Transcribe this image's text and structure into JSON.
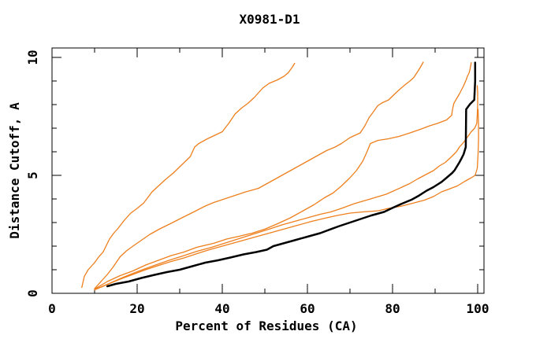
{
  "title": "X0981-D1",
  "colors": {
    "background": "#ffffff",
    "frame": "#000000",
    "target_curve": "#000000",
    "comparison_curve": "#ee7f1d"
  },
  "chart_data": {
    "type": "line",
    "title": "X0981-D1",
    "xlabel": "Percent of Residues (CA)",
    "ylabel": "Distance Cutoff, A",
    "xlim": [
      0,
      101.5
    ],
    "ylim": [
      0,
      10.4
    ],
    "grid": false,
    "legend": "none",
    "x_ticks": [
      {
        "v": 0,
        "label": "0"
      },
      {
        "v": 20,
        "label": "20"
      },
      {
        "v": 40,
        "label": "40"
      },
      {
        "v": 60,
        "label": "60"
      },
      {
        "v": 80,
        "label": "80"
      },
      {
        "v": 100,
        "label": "100"
      }
    ],
    "x_minor_ticks": [
      10,
      30,
      50,
      70,
      90
    ],
    "y_ticks": [
      {
        "v": 0,
        "label": "0"
      },
      {
        "v": 5,
        "label": "5"
      },
      {
        "v": 10,
        "label": "10"
      }
    ],
    "y_minor_ticks": [
      1,
      2,
      3,
      4,
      6,
      7,
      8,
      9
    ],
    "series": [
      {
        "name": "orange-curve-1",
        "color": "#ee7f1d",
        "width": 1.3,
        "points": [
          [
            7,
            0.25
          ],
          [
            7.6,
            0.72
          ],
          [
            8.5,
            1.0
          ],
          [
            10,
            1.3
          ],
          [
            11,
            1.55
          ],
          [
            12,
            1.75
          ],
          [
            13.5,
            2.3
          ],
          [
            14.5,
            2.55
          ],
          [
            15.5,
            2.75
          ],
          [
            17,
            3.1
          ],
          [
            18.5,
            3.4
          ],
          [
            20,
            3.6
          ],
          [
            21.5,
            3.82
          ],
          [
            23.5,
            4.3
          ],
          [
            25,
            4.55
          ],
          [
            26.5,
            4.8
          ],
          [
            28.5,
            5.1
          ],
          [
            30.5,
            5.45
          ],
          [
            32.5,
            5.8
          ],
          [
            33.5,
            6.2
          ],
          [
            34.5,
            6.35
          ],
          [
            36.5,
            6.55
          ],
          [
            38.5,
            6.72
          ],
          [
            40,
            6.85
          ],
          [
            41.5,
            7.2
          ],
          [
            43,
            7.6
          ],
          [
            44.5,
            7.85
          ],
          [
            46,
            8.05
          ],
          [
            47.5,
            8.3
          ],
          [
            49.5,
            8.7
          ],
          [
            51,
            8.9
          ],
          [
            53,
            9.05
          ],
          [
            54.5,
            9.2
          ],
          [
            55.5,
            9.35
          ],
          [
            56.5,
            9.6
          ],
          [
            57,
            9.75
          ]
        ]
      },
      {
        "name": "orange-curve-2",
        "color": "#ee7f1d",
        "width": 1.3,
        "points": [
          [
            10,
            0.2
          ],
          [
            11.5,
            0.5
          ],
          [
            13,
            0.8
          ],
          [
            14.3,
            1.1
          ],
          [
            16,
            1.55
          ],
          [
            17.5,
            1.8
          ],
          [
            19,
            2.0
          ],
          [
            21,
            2.25
          ],
          [
            23,
            2.5
          ],
          [
            25.5,
            2.75
          ],
          [
            27.8,
            2.95
          ],
          [
            30.5,
            3.2
          ],
          [
            33.3,
            3.45
          ],
          [
            36,
            3.7
          ],
          [
            38,
            3.85
          ],
          [
            40.5,
            4.0
          ],
          [
            43,
            4.15
          ],
          [
            45.5,
            4.3
          ],
          [
            48.5,
            4.45
          ],
          [
            50.5,
            4.65
          ],
          [
            52.5,
            4.85
          ],
          [
            55,
            5.1
          ],
          [
            57,
            5.3
          ],
          [
            58.5,
            5.45
          ],
          [
            60.5,
            5.65
          ],
          [
            62,
            5.8
          ],
          [
            64.5,
            6.05
          ],
          [
            66.5,
            6.2
          ],
          [
            68,
            6.35
          ],
          [
            70,
            6.6
          ],
          [
            72.4,
            6.8
          ],
          [
            73.5,
            7.1
          ],
          [
            74.5,
            7.45
          ],
          [
            75.4,
            7.67
          ],
          [
            76.5,
            7.95
          ],
          [
            77.5,
            8.07
          ],
          [
            79.1,
            8.2
          ],
          [
            80.5,
            8.45
          ],
          [
            81.7,
            8.65
          ],
          [
            83,
            8.85
          ],
          [
            84.1,
            9.0
          ],
          [
            85,
            9.15
          ],
          [
            85.9,
            9.4
          ],
          [
            86.6,
            9.6
          ],
          [
            87.2,
            9.8
          ]
        ]
      },
      {
        "name": "orange-curve-3",
        "color": "#ee7f1d",
        "width": 1.3,
        "points": [
          [
            10,
            0.18
          ],
          [
            13,
            0.5
          ],
          [
            16,
            0.75
          ],
          [
            19,
            0.95
          ],
          [
            22,
            1.2
          ],
          [
            25,
            1.4
          ],
          [
            28,
            1.6
          ],
          [
            31,
            1.75
          ],
          [
            34,
            1.95
          ],
          [
            38,
            2.12
          ],
          [
            41,
            2.3
          ],
          [
            44,
            2.42
          ],
          [
            47,
            2.55
          ],
          [
            50,
            2.72
          ],
          [
            53,
            2.95
          ],
          [
            56,
            3.2
          ],
          [
            59,
            3.5
          ],
          [
            61.5,
            3.75
          ],
          [
            64,
            4.05
          ],
          [
            66,
            4.25
          ],
          [
            68,
            4.55
          ],
          [
            70,
            4.9
          ],
          [
            71.5,
            5.2
          ],
          [
            73,
            5.6
          ],
          [
            74,
            6.0
          ],
          [
            74.8,
            6.35
          ],
          [
            76.5,
            6.48
          ],
          [
            79,
            6.55
          ],
          [
            81.5,
            6.65
          ],
          [
            84.1,
            6.8
          ],
          [
            86.5,
            6.95
          ],
          [
            88.7,
            7.1
          ],
          [
            90.5,
            7.2
          ],
          [
            92.7,
            7.35
          ],
          [
            93.9,
            7.55
          ],
          [
            94.1,
            7.8
          ],
          [
            94.4,
            8.05
          ],
          [
            95.2,
            8.3
          ],
          [
            95.7,
            8.45
          ],
          [
            96.7,
            8.8
          ],
          [
            97.3,
            9.05
          ],
          [
            97.6,
            9.2
          ],
          [
            98,
            9.35
          ],
          [
            98.2,
            9.5
          ],
          [
            98.5,
            9.78
          ]
        ]
      },
      {
        "name": "orange-curve-4",
        "color": "#ee7f1d",
        "width": 1.3,
        "points": [
          [
            10,
            0.15
          ],
          [
            13.5,
            0.42
          ],
          [
            17,
            0.7
          ],
          [
            20.5,
            0.95
          ],
          [
            24,
            1.18
          ],
          [
            27.5,
            1.4
          ],
          [
            31,
            1.6
          ],
          [
            34,
            1.78
          ],
          [
            37.5,
            1.95
          ],
          [
            41,
            2.15
          ],
          [
            44.5,
            2.35
          ],
          [
            48,
            2.55
          ],
          [
            51,
            2.72
          ],
          [
            54,
            2.9
          ],
          [
            57,
            3.05
          ],
          [
            60,
            3.2
          ],
          [
            63,
            3.35
          ],
          [
            65.5,
            3.45
          ],
          [
            68,
            3.6
          ],
          [
            71,
            3.8
          ],
          [
            74.8,
            4.0
          ],
          [
            78.5,
            4.2
          ],
          [
            82.2,
            4.5
          ],
          [
            84,
            4.65
          ],
          [
            85.9,
            4.85
          ],
          [
            88,
            5.05
          ],
          [
            89.6,
            5.2
          ],
          [
            91,
            5.4
          ],
          [
            92.4,
            5.55
          ],
          [
            93.9,
            5.8
          ],
          [
            95,
            6.0
          ],
          [
            95.7,
            6.2
          ],
          [
            96.7,
            6.4
          ],
          [
            97.5,
            6.6
          ],
          [
            98.5,
            6.85
          ],
          [
            99.3,
            7.0
          ],
          [
            99.8,
            7.2
          ],
          [
            99.9,
            7.6
          ],
          [
            100,
            8.0
          ],
          [
            100,
            8.5
          ],
          [
            99.9,
            8.8
          ]
        ]
      },
      {
        "name": "orange-curve-5",
        "color": "#ee7f1d",
        "width": 1.3,
        "points": [
          [
            10,
            0.15
          ],
          [
            13,
            0.38
          ],
          [
            16,
            0.6
          ],
          [
            19,
            0.8
          ],
          [
            22,
            1.0
          ],
          [
            25,
            1.18
          ],
          [
            28,
            1.35
          ],
          [
            31,
            1.5
          ],
          [
            34,
            1.68
          ],
          [
            37,
            1.85
          ],
          [
            40,
            2.0
          ],
          [
            43,
            2.15
          ],
          [
            46,
            2.3
          ],
          [
            49,
            2.45
          ],
          [
            52,
            2.6
          ],
          [
            55,
            2.75
          ],
          [
            58,
            2.9
          ],
          [
            61,
            3.05
          ],
          [
            64,
            3.18
          ],
          [
            67,
            3.3
          ],
          [
            70,
            3.4
          ],
          [
            73,
            3.45
          ],
          [
            76.7,
            3.5
          ],
          [
            79,
            3.6
          ],
          [
            82.2,
            3.7
          ],
          [
            85.4,
            3.85
          ],
          [
            87.5,
            3.95
          ],
          [
            89.6,
            4.1
          ],
          [
            91.5,
            4.3
          ],
          [
            93,
            4.4
          ],
          [
            95.2,
            4.55
          ],
          [
            97,
            4.75
          ],
          [
            98.5,
            4.9
          ],
          [
            99.4,
            5.0
          ],
          [
            99.9,
            5.3
          ],
          [
            100.1,
            5.9
          ],
          [
            100.2,
            6.5
          ],
          [
            100.2,
            7.1
          ],
          [
            100.1,
            7.8
          ]
        ]
      },
      {
        "name": "black-curve-target",
        "color": "#000000",
        "width": 2.5,
        "points": [
          [
            13,
            0.3
          ],
          [
            15,
            0.4
          ],
          [
            18,
            0.5
          ],
          [
            21,
            0.65
          ],
          [
            24,
            0.78
          ],
          [
            27,
            0.9
          ],
          [
            30,
            1.0
          ],
          [
            33,
            1.15
          ],
          [
            36,
            1.3
          ],
          [
            39,
            1.4
          ],
          [
            42,
            1.52
          ],
          [
            45,
            1.65
          ],
          [
            48,
            1.75
          ],
          [
            50.5,
            1.85
          ],
          [
            52,
            2.0
          ],
          [
            54,
            2.1
          ],
          [
            57,
            2.25
          ],
          [
            60,
            2.4
          ],
          [
            63,
            2.55
          ],
          [
            65.5,
            2.72
          ],
          [
            67.5,
            2.85
          ],
          [
            70,
            3.0
          ],
          [
            72.5,
            3.15
          ],
          [
            75,
            3.3
          ],
          [
            78,
            3.45
          ],
          [
            80,
            3.62
          ],
          [
            82.2,
            3.8
          ],
          [
            84.5,
            3.97
          ],
          [
            86,
            4.12
          ],
          [
            88,
            4.35
          ],
          [
            89.6,
            4.5
          ],
          [
            91.5,
            4.72
          ],
          [
            92.7,
            4.9
          ],
          [
            94,
            5.1
          ],
          [
            94.6,
            5.22
          ],
          [
            95.7,
            5.55
          ],
          [
            96.3,
            5.75
          ],
          [
            96.7,
            5.9
          ],
          [
            97.2,
            6.2
          ],
          [
            97.3,
            7.8
          ],
          [
            98.2,
            8.02
          ],
          [
            99.2,
            8.2
          ],
          [
            99.4,
            9.0
          ],
          [
            99.4,
            9.78
          ]
        ]
      }
    ]
  }
}
